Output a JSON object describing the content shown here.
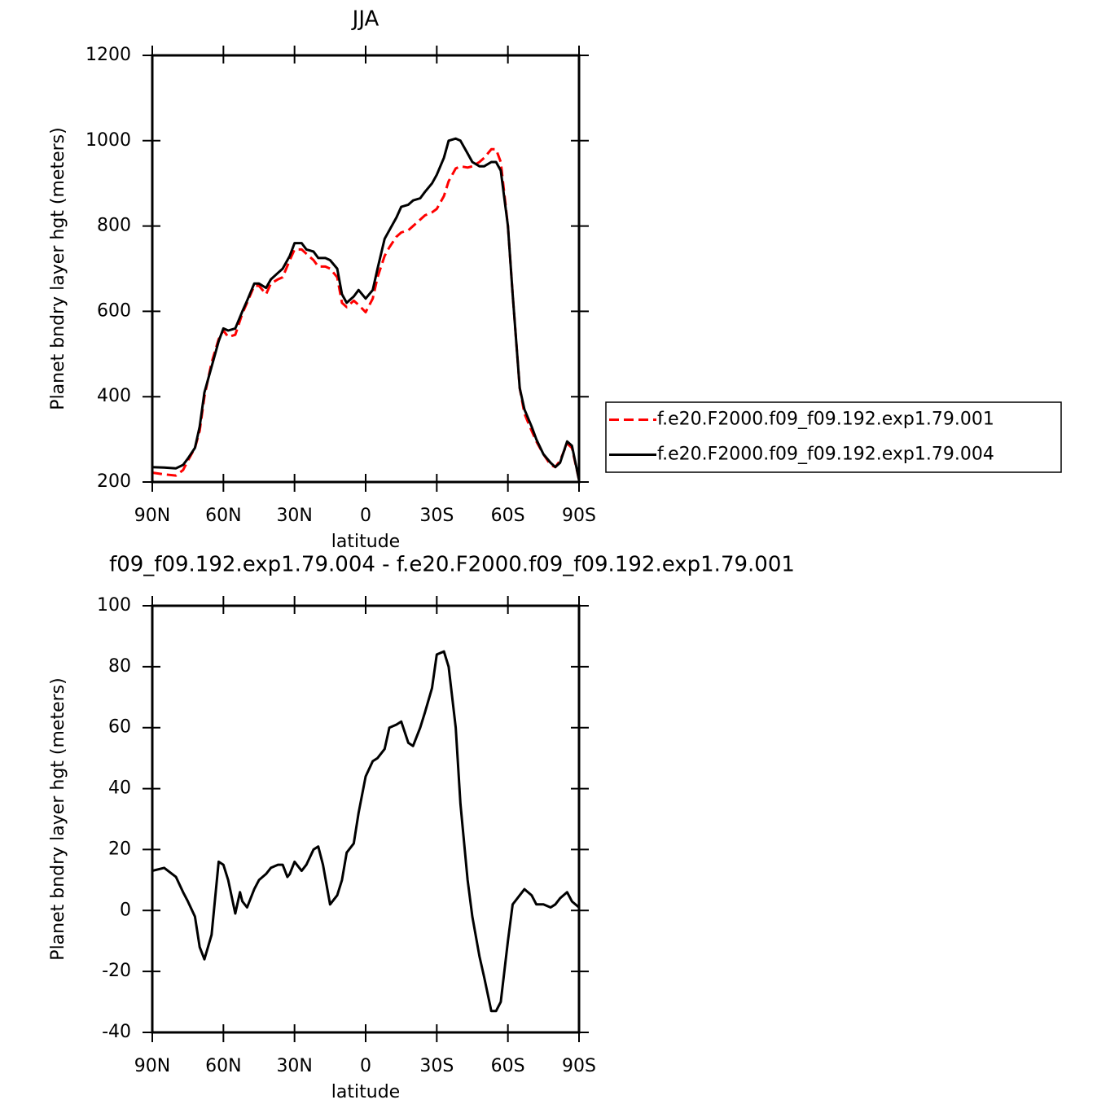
{
  "chart_data": [
    {
      "type": "line",
      "title": "JJA",
      "xlabel": "latitude",
      "ylabel": "Planet bndry layer hgt (meters)",
      "xlim": [
        90,
        -90
      ],
      "ylim": [
        200,
        1200
      ],
      "xticks": [
        {
          "value": 90,
          "label": "90N"
        },
        {
          "value": 60,
          "label": "60N"
        },
        {
          "value": 30,
          "label": "30N"
        },
        0,
        {
          "value": -30,
          "label": "30S"
        },
        {
          "value": -60,
          "label": "60S"
        },
        {
          "value": -90,
          "label": "90S"
        }
      ],
      "yticks": [
        200,
        400,
        600,
        800,
        1000,
        1200
      ],
      "legend": "right",
      "x": [
        90,
        85,
        80,
        77,
        75,
        72,
        70,
        68,
        65,
        62,
        60,
        58,
        55,
        52,
        50,
        47,
        45,
        42,
        40,
        37,
        35,
        32,
        30,
        27,
        25,
        22,
        20,
        17,
        15,
        12,
        10,
        8,
        5,
        3,
        0,
        -3,
        -5,
        -8,
        -10,
        -13,
        -15,
        -18,
        -20,
        -23,
        -25,
        -28,
        -30,
        -33,
        -35,
        -38,
        -40,
        -43,
        -45,
        -48,
        -50,
        -53,
        -55,
        -57,
        -60,
        -62,
        -65,
        -67,
        -70,
        -72,
        -75,
        -78,
        -80,
        -82,
        -85,
        -87,
        -90
      ],
      "series": [
        {
          "name": "f.e20.F2000.f09_f09.192.exp1.79.001",
          "color": "#ff0000",
          "linestyle": "dashed",
          "values": [
            222,
            218,
            215,
            228,
            250,
            280,
            320,
            400,
            480,
            535,
            555,
            540,
            545,
            595,
            620,
            660,
            660,
            640,
            665,
            675,
            680,
            720,
            745,
            745,
            735,
            720,
            705,
            705,
            700,
            680,
            620,
            610,
            625,
            615,
            598,
            630,
            680,
            730,
            750,
            775,
            785,
            790,
            800,
            815,
            825,
            832,
            840,
            870,
            905,
            935,
            940,
            937,
            940,
            950,
            960,
            980,
            980,
            950,
            800,
            640,
            420,
            360,
            320,
            295,
            265,
            240,
            235,
            250,
            290,
            280,
            205
          ]
        },
        {
          "name": "f.e20.F2000.f09_f09.192.exp1.79.004",
          "color": "#000000",
          "linestyle": "solid",
          "values": [
            235,
            234,
            232,
            240,
            255,
            280,
            330,
            410,
            470,
            530,
            560,
            555,
            560,
            600,
            625,
            665,
            665,
            655,
            675,
            690,
            700,
            730,
            760,
            760,
            745,
            740,
            725,
            725,
            720,
            700,
            640,
            620,
            635,
            650,
            630,
            650,
            700,
            770,
            790,
            820,
            845,
            850,
            860,
            865,
            880,
            900,
            920,
            960,
            1000,
            1005,
            1000,
            970,
            950,
            940,
            940,
            950,
            950,
            930,
            800,
            640,
            420,
            370,
            330,
            300,
            265,
            245,
            235,
            245,
            295,
            285,
            205
          ]
        }
      ]
    },
    {
      "type": "line",
      "title": "f09_f09.192.exp1.79.004 - f.e20.F2000.f09_f09.192.exp1.79.001",
      "xlabel": "latitude",
      "ylabel": "Planet bndry layer hgt (meters)",
      "xlim": [
        90,
        -90
      ],
      "ylim": [
        -40,
        100
      ],
      "xticks": [
        {
          "value": 90,
          "label": "90N"
        },
        {
          "value": 60,
          "label": "60N"
        },
        {
          "value": 30,
          "label": "30N"
        },
        0,
        {
          "value": -30,
          "label": "30S"
        },
        {
          "value": -60,
          "label": "60S"
        },
        {
          "value": -90,
          "label": "90S"
        }
      ],
      "yticks": [
        -40,
        -20,
        0,
        20,
        40,
        60,
        80,
        100
      ],
      "x": [
        90,
        85,
        80,
        77,
        75,
        72,
        70,
        68,
        65,
        62,
        60,
        58,
        55,
        53,
        52,
        50,
        47,
        45,
        42,
        40,
        37,
        35,
        33,
        32,
        30,
        27,
        25,
        22,
        20,
        18,
        15,
        12,
        10,
        8,
        5,
        3,
        0,
        -3,
        -5,
        -8,
        -10,
        -13,
        -15,
        -18,
        -20,
        -23,
        -25,
        -28,
        -30,
        -33,
        -35,
        -38,
        -40,
        -43,
        -45,
        -48,
        -50,
        -53,
        -55,
        -57,
        -60,
        -62,
        -65,
        -67,
        -70,
        -72,
        -75,
        -78,
        -80,
        -82,
        -85,
        -87,
        -90
      ],
      "series": [
        {
          "color": "#000000",
          "linestyle": "solid",
          "values": [
            13,
            14,
            11,
            6,
            3,
            -2,
            -12,
            -16,
            -8,
            16,
            15,
            10,
            -1,
            6,
            3,
            1,
            7,
            10,
            12,
            14,
            15,
            15,
            11,
            12,
            16,
            13,
            15,
            20,
            21,
            15,
            2,
            5,
            10,
            19,
            22,
            32,
            44,
            49,
            50,
            53,
            60,
            61,
            62,
            55,
            54,
            60,
            65,
            73,
            84,
            85,
            80,
            60,
            35,
            10,
            -2,
            -15,
            -22,
            -33,
            -33,
            -30,
            -10,
            2,
            5,
            7,
            5,
            2,
            2,
            1,
            2,
            4,
            6,
            3,
            1
          ]
        }
      ]
    }
  ]
}
